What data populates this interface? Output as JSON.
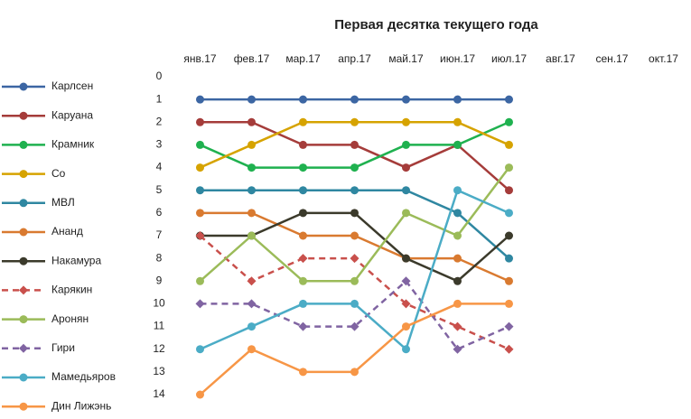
{
  "chart_data": {
    "type": "line",
    "title": "Первая десятка текущего года",
    "categories": [
      "янв.17",
      "фев.17",
      "мар.17",
      "апр.17",
      "май.17",
      "июн.17",
      "июл.17",
      "авг.17",
      "сен.17",
      "окт.17"
    ],
    "ylim": [
      0,
      14
    ],
    "yticks": [
      0,
      1,
      2,
      3,
      4,
      5,
      6,
      7,
      8,
      9,
      10,
      11,
      12,
      13,
      14
    ],
    "y_inverted": true,
    "legend": "left",
    "series": [
      {
        "name": "Карлсен",
        "color": "#3c66a3",
        "values": [
          1,
          1,
          1,
          1,
          1,
          1,
          1,
          null,
          null,
          null
        ]
      },
      {
        "name": "Каруана",
        "color": "#a53c3a",
        "values": [
          2,
          2,
          3,
          3,
          4,
          3,
          5,
          null,
          null,
          null
        ]
      },
      {
        "name": "Крамник",
        "color": "#1fb14f",
        "values": [
          3,
          4,
          4,
          4,
          3,
          3,
          2,
          null,
          null,
          null
        ]
      },
      {
        "name": "Со",
        "color": "#d6a300",
        "values": [
          4,
          3,
          2,
          2,
          2,
          2,
          3,
          null,
          null,
          null
        ]
      },
      {
        "name": "МВЛ",
        "color": "#2f87a1",
        "values": [
          5,
          5,
          5,
          5,
          5,
          6,
          8,
          null,
          null,
          null
        ]
      },
      {
        "name": "Ананд",
        "color": "#d97a30",
        "values": [
          6,
          6,
          7,
          7,
          8,
          8,
          9,
          null,
          null,
          null
        ]
      },
      {
        "name": "Накамура",
        "color": "#3b3a2b",
        "values": [
          7,
          7,
          6,
          6,
          8,
          9,
          7,
          null,
          null,
          null
        ]
      },
      {
        "name": "Карякин",
        "color": "#c9504c",
        "dashed": true,
        "marker": "diamond",
        "values": [
          7,
          9,
          8,
          8,
          10,
          11,
          12,
          null,
          null,
          null
        ]
      },
      {
        "name": "Аронян",
        "color": "#9bbb59",
        "values": [
          9,
          7,
          9,
          9,
          6,
          7,
          4,
          null,
          null,
          null
        ]
      },
      {
        "name": "Гири",
        "color": "#8064a2",
        "dashed": true,
        "marker": "diamond",
        "values": [
          10,
          10,
          11,
          11,
          9,
          12,
          11,
          null,
          null,
          null
        ]
      },
      {
        "name": "Мамедьяров",
        "color": "#4bacc6",
        "values": [
          12,
          11,
          10,
          10,
          12,
          5,
          6,
          null,
          null,
          null
        ]
      },
      {
        "name": "Дин Лижэнь",
        "color": "#f79646",
        "values": [
          14,
          12,
          13,
          13,
          11,
          10,
          10,
          null,
          null,
          null
        ]
      }
    ]
  }
}
